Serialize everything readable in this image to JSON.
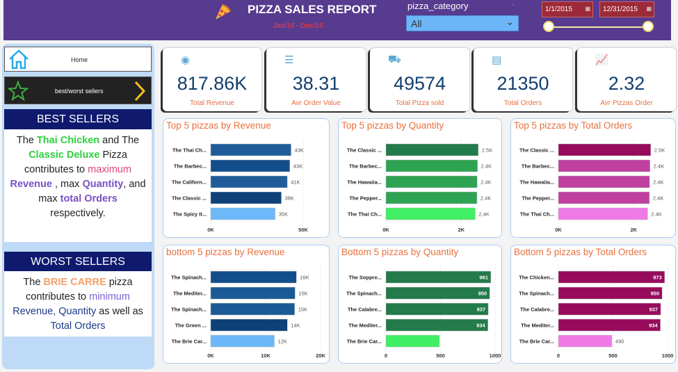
{
  "header": {
    "title": "PIZZA SALES REPORT",
    "subtitle": "Jan/15  -  Dec/15",
    "category_label": "pizza_category",
    "category_value": "All",
    "date_start": "1/1/2015",
    "date_end": "12/31/2015"
  },
  "nav": {
    "home": "Home",
    "best_worst": "best/worst sellers"
  },
  "best": {
    "title": "BEST SELLERS",
    "segments": [
      {
        "t": "The ",
        "c": "#222"
      },
      {
        "t": "Thai Chicken",
        "c": "#2fcf3f",
        "b": true
      },
      {
        "t": "  and The ",
        "c": "#222"
      },
      {
        "t": "Classic Deluxe",
        "c": "#2fcf3f",
        "b": true
      },
      {
        "t": " Pizza contributes to ",
        "c": "#222"
      },
      {
        "t": "maximum",
        "c": "#e0457b"
      },
      {
        "t": " ",
        "c": "#222"
      },
      {
        "t": "Revenue",
        "c": "#7a4fc7",
        "b": true
      },
      {
        "t": " , max ",
        "c": "#222"
      },
      {
        "t": "Quantity",
        "c": "#7a4fc7",
        "b": true
      },
      {
        "t": ", and max ",
        "c": "#222"
      },
      {
        "t": "total Orders",
        "c": "#7a4fc7",
        "b": true
      },
      {
        "t": " respectively.",
        "c": "#222"
      }
    ]
  },
  "worst": {
    "title": "WORST SELLERS",
    "segments": [
      {
        "t": "The ",
        "c": "#222"
      },
      {
        "t": "BRIE CARRE",
        "c": "#f4a06b",
        "b": true
      },
      {
        "t": " pizza contributes to ",
        "c": "#222"
      },
      {
        "t": "minimum",
        "c": "#7b5fd0"
      },
      {
        "t": " Revenue, Quantity",
        "c": "#1b3a8a"
      },
      {
        "t": " as well as ",
        "c": "#222"
      },
      {
        "t": "Total Orders",
        "c": "#1b3a8a"
      }
    ]
  },
  "kpis": [
    {
      "value": "817.86K",
      "label": "Total Revenue",
      "icon": "money-icon"
    },
    {
      "value": "38.31",
      "label": "Avr Order Value",
      "icon": "clipboard-icon"
    },
    {
      "value": "49574",
      "label": "Total Pizza sold",
      "icon": "delivery-icon"
    },
    {
      "value": "21350",
      "label": "Total Orders",
      "icon": "order-list-icon"
    },
    {
      "value": "2.32",
      "label": "Avr Pizzas Order",
      "icon": "trend-chart-icon"
    }
  ],
  "chart_data": [
    {
      "type": "bar",
      "title": "Top 5 pizzas by Revenue",
      "categories": [
        "The Thai Ch...",
        "The Barbec...",
        "The Californ...",
        "The Classic ...",
        "The Spicy It..."
      ],
      "values": [
        43434,
        42768,
        41410,
        38181,
        34832
      ],
      "labels": [
        "43K",
        "43K",
        "41K",
        "38K",
        "35K"
      ],
      "xlim": [
        0,
        50000
      ],
      "ticks": [
        "0K",
        "50K"
      ],
      "tick_values": [
        0,
        50000
      ],
      "colors": [
        "#1f5c99",
        "#134e8c",
        "#1f5c99",
        "#0d4177",
        "#6cb8f8"
      ]
    },
    {
      "type": "bar",
      "title": "Top 5 pizzas by Quantity",
      "categories": [
        "The Classic ...",
        "The Barbec...",
        "The Hawaiia...",
        "The Pepper...",
        "The Thai Ch..."
      ],
      "values": [
        2453,
        2432,
        2422,
        2418,
        2371
      ],
      "labels": [
        "2.5K",
        "2.4K",
        "2.4K",
        "2.4K",
        "2.4K"
      ],
      "xlim": [
        0,
        2900
      ],
      "ticks": [
        "0K",
        "2K"
      ],
      "tick_values": [
        0,
        2000
      ],
      "colors": [
        "#237a4b",
        "#2ea352",
        "#2ea352",
        "#2ea352",
        "#40ef63"
      ]
    },
    {
      "type": "bar",
      "title": "Top 5 pizzas by Total Orders",
      "categories": [
        "The Classic ...",
        "The Barbec...",
        "The Hawaiia...",
        "The Pepper...",
        "The Thai Ch..."
      ],
      "values": [
        2453,
        2432,
        2422,
        2418,
        2371
      ],
      "labels": [
        "2.5K",
        "2.4K",
        "2.4K",
        "2.4K",
        "2.4K"
      ],
      "xlim": [
        0,
        2900
      ],
      "ticks": [
        "0K",
        "2K"
      ],
      "tick_values": [
        0,
        2000
      ],
      "colors": [
        "#960b5c",
        "#c040a0",
        "#c040a0",
        "#c040a0",
        "#ef7ae6"
      ]
    },
    {
      "type": "bar",
      "title": "bottom 5 pizzas by Revenue",
      "categories": [
        "The Spinach...",
        "The Mediter...",
        "The Spinach...",
        "The Green ...",
        "The Brie Car..."
      ],
      "values": [
        15600,
        15360,
        15277,
        13956,
        11588
      ],
      "labels": [
        "16K",
        "15K",
        "15K",
        "14K",
        "12K"
      ],
      "xlim": [
        0,
        20000
      ],
      "ticks": [
        "0K",
        "10K",
        "20K"
      ],
      "tick_values": [
        0,
        10000,
        20000
      ],
      "colors": [
        "#134e8c",
        "#1a5a96",
        "#1a5a96",
        "#0d4177",
        "#6cb8f8"
      ]
    },
    {
      "type": "bar",
      "title": "Bottom 5 pizzas by Quantity",
      "categories": [
        "The Soppre...",
        "The Spinach...",
        "The Calabre...",
        "The Mediter...",
        "The Brie Car..."
      ],
      "values": [
        961,
        950,
        937,
        934,
        490
      ],
      "labels": [
        "961",
        "950",
        "937",
        "934",
        ""
      ],
      "labels_inside": true,
      "xlim": [
        0,
        1000
      ],
      "ticks": [
        "0",
        "500",
        "1000"
      ],
      "tick_values": [
        0,
        500,
        1000
      ],
      "colors": [
        "#237a4b",
        "#237a4b",
        "#237a4b",
        "#237a4b",
        "#40ef63"
      ]
    },
    {
      "type": "bar",
      "title": "Bottom 5 pizzas by Total Orders",
      "categories": [
        "The Chicken...",
        "The Spinach...",
        "The Calabre...",
        "The Mediter...",
        "The Brie Car..."
      ],
      "values": [
        973,
        950,
        937,
        934,
        490
      ],
      "labels": [
        "973",
        "950",
        "937",
        "934",
        "490"
      ],
      "labels_inside": true,
      "xlim": [
        0,
        1000
      ],
      "ticks": [
        "0",
        "500",
        "1000"
      ],
      "tick_values": [
        0,
        500,
        1000
      ],
      "colors": [
        "#960b5c",
        "#960b5c",
        "#960b5c",
        "#960b5c",
        "#ef7ae6"
      ]
    }
  ]
}
